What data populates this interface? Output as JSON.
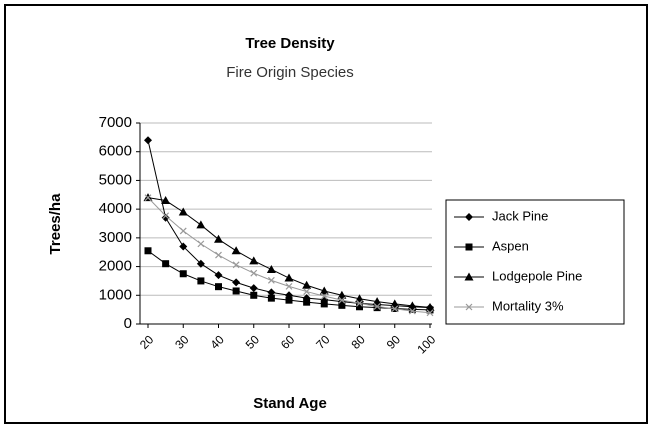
{
  "chart_data": {
    "type": "line",
    "title": "Tree Density",
    "subtitle": "Fire Origin Species",
    "x_label": "Stand Age",
    "y_label": "Trees/ha",
    "categories": [
      20,
      null,
      30,
      null,
      40,
      null,
      50,
      null,
      60,
      null,
      70,
      null,
      80,
      null,
      90,
      null,
      100
    ],
    "ylim": [
      0,
      7000
    ],
    "yticks": [
      0,
      1000,
      2000,
      3000,
      4000,
      5000,
      6000,
      7000
    ],
    "grid": true,
    "legend": "right",
    "series": [
      {
        "name": "Jack Pine",
        "color": "#000000",
        "marker": "diamond",
        "values": [
          6400,
          3700,
          2700,
          2100,
          1700,
          1450,
          1250,
          1100,
          1000,
          900,
          850,
          780,
          720,
          680,
          640,
          600,
          570
        ]
      },
      {
        "name": "Aspen",
        "color": "#000000",
        "marker": "square",
        "values": [
          2550,
          2100,
          1750,
          1500,
          1300,
          1150,
          1000,
          900,
          830,
          760,
          700,
          650,
          600,
          570,
          540,
          510,
          490
        ]
      },
      {
        "name": "Lodgepole Pine",
        "color": "#000000",
        "marker": "triangle",
        "values": [
          4400,
          4300,
          3900,
          3450,
          2950,
          2550,
          2200,
          1900,
          1600,
          1350,
          1150,
          1000,
          880,
          780,
          700,
          630,
          580
        ]
      },
      {
        "name": "Mortality 3%",
        "color": "#999999",
        "marker": "x",
        "values": [
          4400,
          3770,
          3240,
          2790,
          2400,
          2060,
          1770,
          1520,
          1310,
          1130,
          970,
          830,
          720,
          610,
          530,
          450,
          390
        ]
      }
    ]
  }
}
